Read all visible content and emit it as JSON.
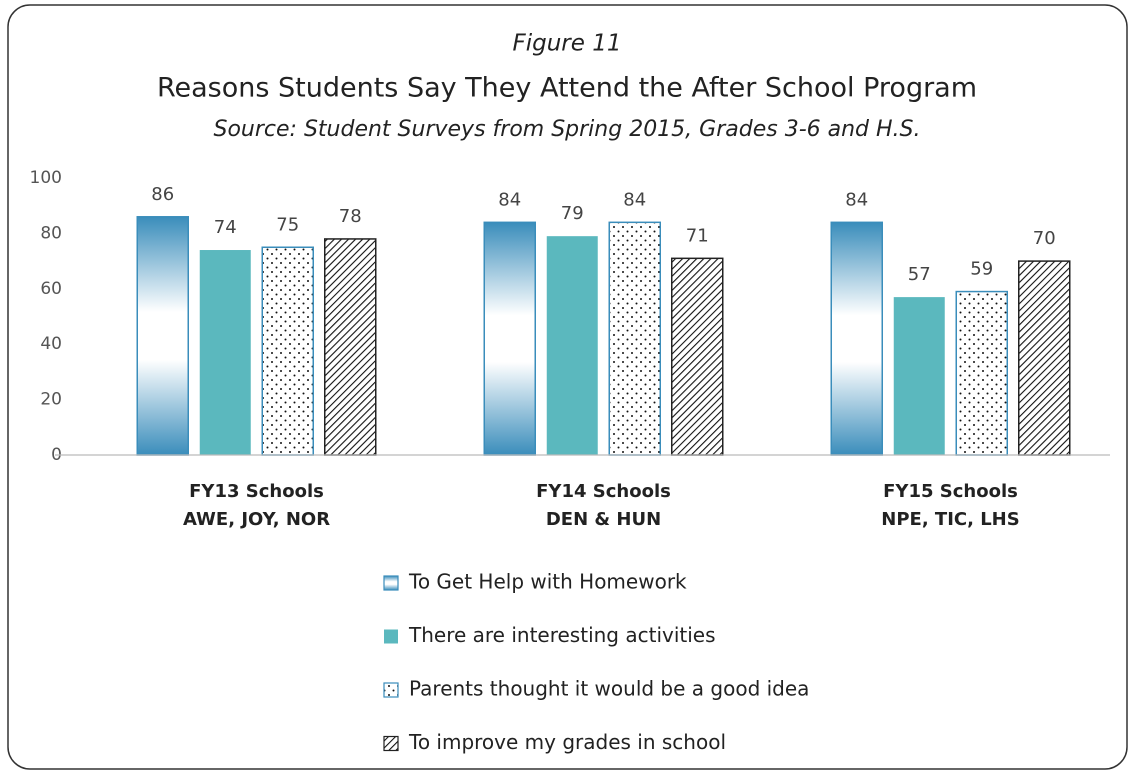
{
  "chart_data": {
    "type": "bar",
    "figure_label": "Figure 11",
    "title": "Reasons Students Say They Attend the After School Program",
    "subtitle": "Source: Student Surveys from Spring 2015, Grades 3-6 and H.S.",
    "categories": [
      [
        "FY13 Schools",
        "AWE, JOY, NOR"
      ],
      [
        "FY14 Schools",
        "DEN & HUN"
      ],
      [
        "FY15 Schools",
        "NPE, TIC, LHS"
      ]
    ],
    "series": [
      {
        "name": "To Get Help with Homework",
        "color": "#3a8dbb",
        "pattern": "gradient",
        "values": [
          86,
          84,
          84
        ]
      },
      {
        "name": "There are interesting activities",
        "color": "#5bb8be",
        "pattern": "solid",
        "values": [
          74,
          79,
          57
        ]
      },
      {
        "name": "Parents thought it would be a good idea",
        "color": "#3a8dbb",
        "pattern": "dots",
        "values": [
          75,
          84,
          59
        ]
      },
      {
        "name": "To improve my grades in school",
        "color": "#222222",
        "pattern": "hatch",
        "values": [
          78,
          71,
          70
        ]
      }
    ],
    "ylim": [
      0,
      100
    ],
    "yticks": [
      0,
      20,
      40,
      60,
      80,
      100
    ],
    "grid": false,
    "legend": "bottom"
  }
}
